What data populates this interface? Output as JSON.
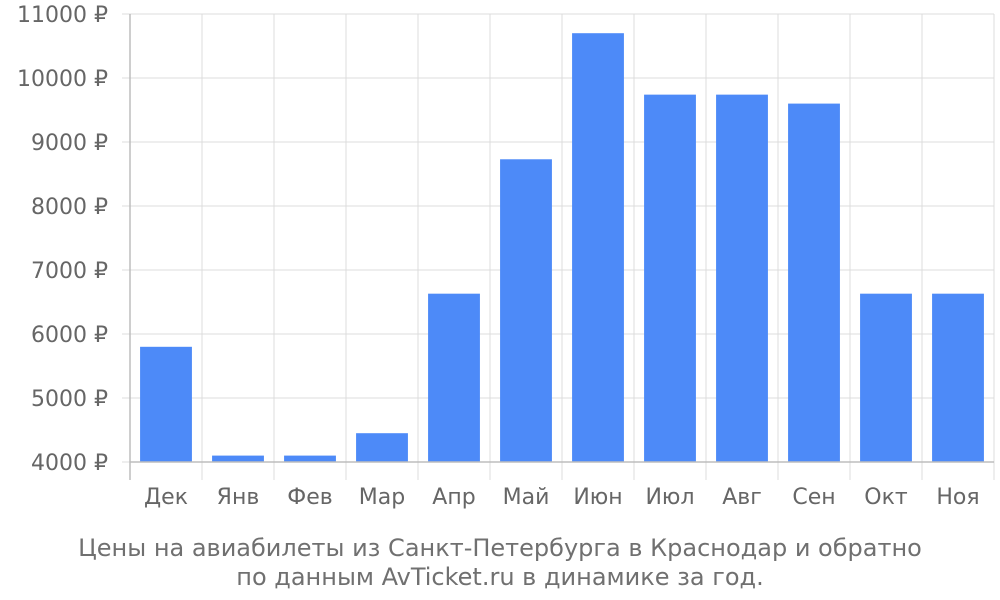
{
  "chart_data": {
    "type": "bar",
    "categories": [
      "Дек",
      "Янв",
      "Фев",
      "Мар",
      "Апр",
      "Май",
      "Июн",
      "Июл",
      "Авг",
      "Сен",
      "Окт",
      "Ноя"
    ],
    "values": [
      5800,
      4100,
      4100,
      4450,
      6630,
      8730,
      10700,
      9740,
      9740,
      9600,
      6630,
      6630
    ],
    "ylim": [
      4000,
      11000
    ],
    "yticks": [
      4000,
      5000,
      6000,
      7000,
      8000,
      9000,
      10000,
      11000
    ],
    "ytick_labels": [
      "4000 ₽",
      "5000 ₽",
      "6000 ₽",
      "7000 ₽",
      "8000 ₽",
      "9000 ₽",
      "10000 ₽",
      "11000 ₽"
    ],
    "grid": true,
    "bar_color": "#4d8af8",
    "caption_line1": "Цены на авиабилеты из Санкт-Петербурга в Краснодар и обратно",
    "caption_line2": "по данным AvTicket.ru в динамике за год."
  }
}
